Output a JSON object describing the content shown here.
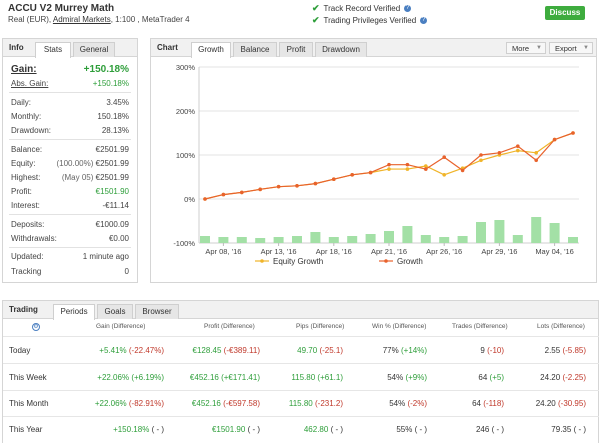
{
  "header": {
    "account_name": "ACCU V2 Murrey Math",
    "sub_prefix": "Real (EUR),",
    "broker": "Admiral Markets",
    "sub_suffix": ", 1:100 , MetaTrader 4",
    "track_record": "Track Record Verified",
    "trading_privileges": "Trading Privileges Verified",
    "discuss_label": "Discuss"
  },
  "info_panel": {
    "title": "Info",
    "tabs": [
      "Stats",
      "General"
    ],
    "gain": {
      "label": "Gain:",
      "value": "+150.18%"
    },
    "abs_gain": {
      "label": "Abs. Gain:",
      "value": "+150.18%"
    },
    "daily": {
      "label": "Daily:",
      "value": "3.45%"
    },
    "monthly": {
      "label": "Monthly:",
      "value": "150.18%"
    },
    "drawdown": {
      "label": "Drawdown:",
      "value": "28.13%"
    },
    "balance": {
      "label": "Balance:",
      "value": "€2501.99"
    },
    "equity": {
      "label": "Equity:",
      "note": "(100.00%)",
      "value": "€2501.99"
    },
    "highest": {
      "label": "Highest:",
      "note": "(May 05)",
      "value": "€2501.99"
    },
    "profit": {
      "label": "Profit:",
      "value": "€1501.90"
    },
    "interest": {
      "label": "Interest:",
      "value": "-€11.14"
    },
    "deposits": {
      "label": "Deposits:",
      "value": "€1000.09"
    },
    "withdrawals": {
      "label": "Withdrawals:",
      "value": "€0.00"
    },
    "updated": {
      "label": "Updated:",
      "value": "1 minute ago"
    },
    "tracking": {
      "label": "Tracking",
      "value": "0"
    }
  },
  "chart_panel": {
    "title": "Chart",
    "tabs": [
      "Growth",
      "Balance",
      "Profit",
      "Drawdown"
    ],
    "more_label": "More",
    "export_label": "Export"
  },
  "chart_data": {
    "type": "line",
    "ylim": [
      -100,
      300
    ],
    "y_ticks": [
      "300%",
      "200%",
      "100%",
      "0%",
      "-100%"
    ],
    "x_ticks": [
      "Apr 08, '16",
      "Apr 13, '16",
      "Apr 18, '16",
      "Apr 21, '16",
      "Apr 26, '16",
      "Apr 29, '16",
      "May 04, '16"
    ],
    "x_tick_index": [
      1,
      4,
      7,
      10,
      13,
      16,
      19
    ],
    "grid": true,
    "legend_position": "bottom",
    "series": [
      {
        "name": "Equity Growth",
        "color": "#f0b429",
        "values": [
          0,
          10,
          15,
          22,
          28,
          30,
          35,
          45,
          55,
          60,
          68,
          68,
          75,
          55,
          70,
          88,
          100,
          110,
          105,
          135,
          150
        ]
      },
      {
        "name": "Growth",
        "color": "#e8622c",
        "values": [
          0,
          10,
          15,
          22,
          28,
          30,
          35,
          45,
          55,
          60,
          78,
          78,
          68,
          95,
          65,
          100,
          105,
          120,
          88,
          135,
          150
        ]
      }
    ],
    "volume_bars": {
      "color": "#a3e0a6",
      "values": [
        14,
        12,
        12,
        10,
        12,
        14,
        22,
        12,
        14,
        18,
        24,
        34,
        16,
        12,
        14,
        42,
        46,
        16,
        52,
        40,
        12
      ]
    }
  },
  "trading_panel": {
    "title": "Trading",
    "tabs": [
      "Periods",
      "Goals",
      "Browser"
    ],
    "columns": [
      "Gain (Difference)",
      "Profit (Difference)",
      "Pips (Difference)",
      "Win % (Difference)",
      "Trades (Difference)",
      "Lots (Difference)"
    ],
    "rows": [
      {
        "label": "Today",
        "gain": "+5.41%",
        "gain_diff": "(-22.47%)",
        "profit": "€128.45",
        "profit_diff": "(-€389.11)",
        "pips": "49.70",
        "pips_diff": "(-25.1)",
        "win": "77%",
        "win_diff": "(+14%)",
        "trades": "9",
        "trades_diff": "(-10)",
        "lots": "2.55",
        "lots_diff": "(-5.85)"
      },
      {
        "label": "This Week",
        "gain": "+22.06%",
        "gain_diff": "(+6.19%)",
        "profit": "€452.16",
        "profit_diff": "(+€171.41)",
        "pips": "115.80",
        "pips_diff": "(+61.1)",
        "win": "54%",
        "win_diff": "(+9%)",
        "trades": "64",
        "trades_diff": "(+5)",
        "lots": "24.20",
        "lots_diff": "(-2.25)"
      },
      {
        "label": "This Month",
        "gain": "+22.06%",
        "gain_diff": "(-82.91%)",
        "profit": "€452.16",
        "profit_diff": "(-€597.58)",
        "pips": "115.80",
        "pips_diff": "(-231.2)",
        "win": "54%",
        "win_diff": "(-2%)",
        "trades": "64",
        "trades_diff": "(-118)",
        "lots": "24.20",
        "lots_diff": "(-30.95)"
      },
      {
        "label": "This Year",
        "gain": "+150.18%",
        "gain_diff": "( - )",
        "profit": "€1501.90",
        "profit_diff": "( - )",
        "pips": "462.80",
        "pips_diff": "( - )",
        "win": "55%",
        "win_diff": "( - )",
        "trades": "246",
        "trades_diff": "( - )",
        "lots": "79.35",
        "lots_diff": "( - )"
      }
    ]
  },
  "icons": {
    "verified": "check-icon",
    "help": "help-icon",
    "gear": "gear-icon"
  }
}
